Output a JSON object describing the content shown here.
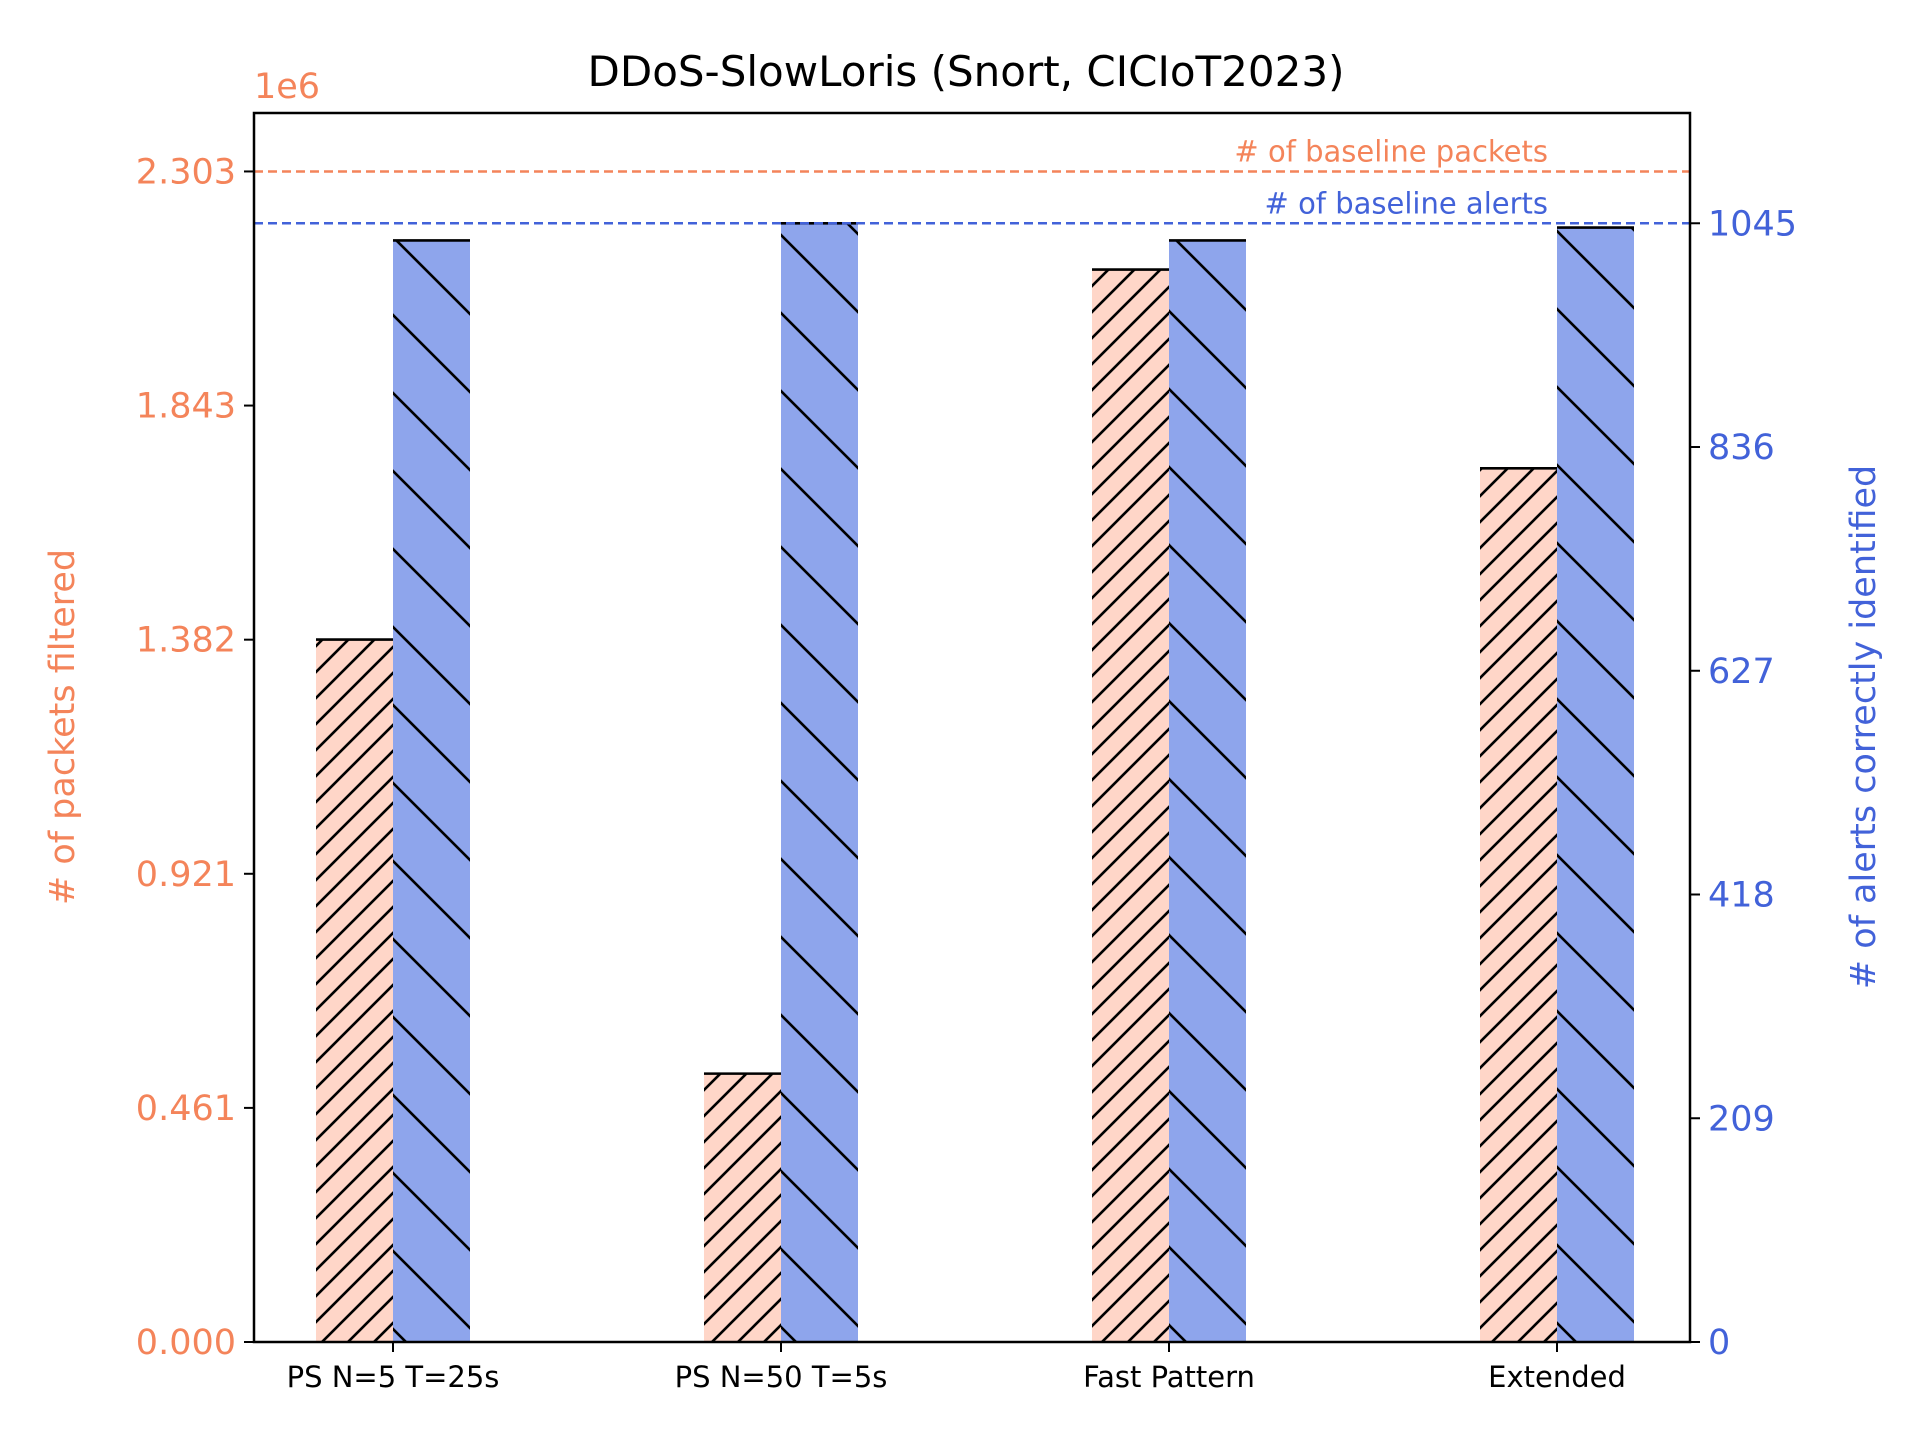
{
  "chart_data": {
    "type": "bar",
    "title": "DDoS-SlowLoris (Snort, CICIoT2023)",
    "categories": [
      "PS N=5 T=25s",
      "PS N=50 T=5s",
      "Fast Pattern",
      "Extended"
    ],
    "series": [
      {
        "axis": "left",
        "values": [
          1382000,
          528000,
          2110000,
          1719000
        ],
        "color": "#FFD6C8",
        "hatch": "forward-diagonal"
      },
      {
        "axis": "right",
        "values": [
          1029,
          1045,
          1029,
          1041
        ],
        "color": "#8EA5EC",
        "hatch": "back-diagonal"
      }
    ],
    "left_axis": {
      "label": "# of packets filtered",
      "multiplier_label": "1e6",
      "ticks": [
        "0.000",
        "0.461",
        "0.921",
        "1.382",
        "1.843",
        "2.303"
      ],
      "ylim": [
        0,
        2418000
      ],
      "color": "#F4845A"
    },
    "right_axis": {
      "label": "# of alerts correctly identified",
      "ticks": [
        "0",
        "209",
        "418",
        "627",
        "836",
        "1045"
      ],
      "ylim": [
        0,
        1148
      ],
      "color": "#4262D9"
    },
    "reference_lines": [
      {
        "label": "# of baseline packets",
        "axis": "left",
        "value": 2303000,
        "color": "#F4845A",
        "style": "dashed"
      },
      {
        "label": "# of baseline alerts",
        "axis": "right",
        "value": 1045,
        "color": "#4262D9",
        "style": "dashed"
      }
    ],
    "grid": false,
    "legend": "none"
  }
}
